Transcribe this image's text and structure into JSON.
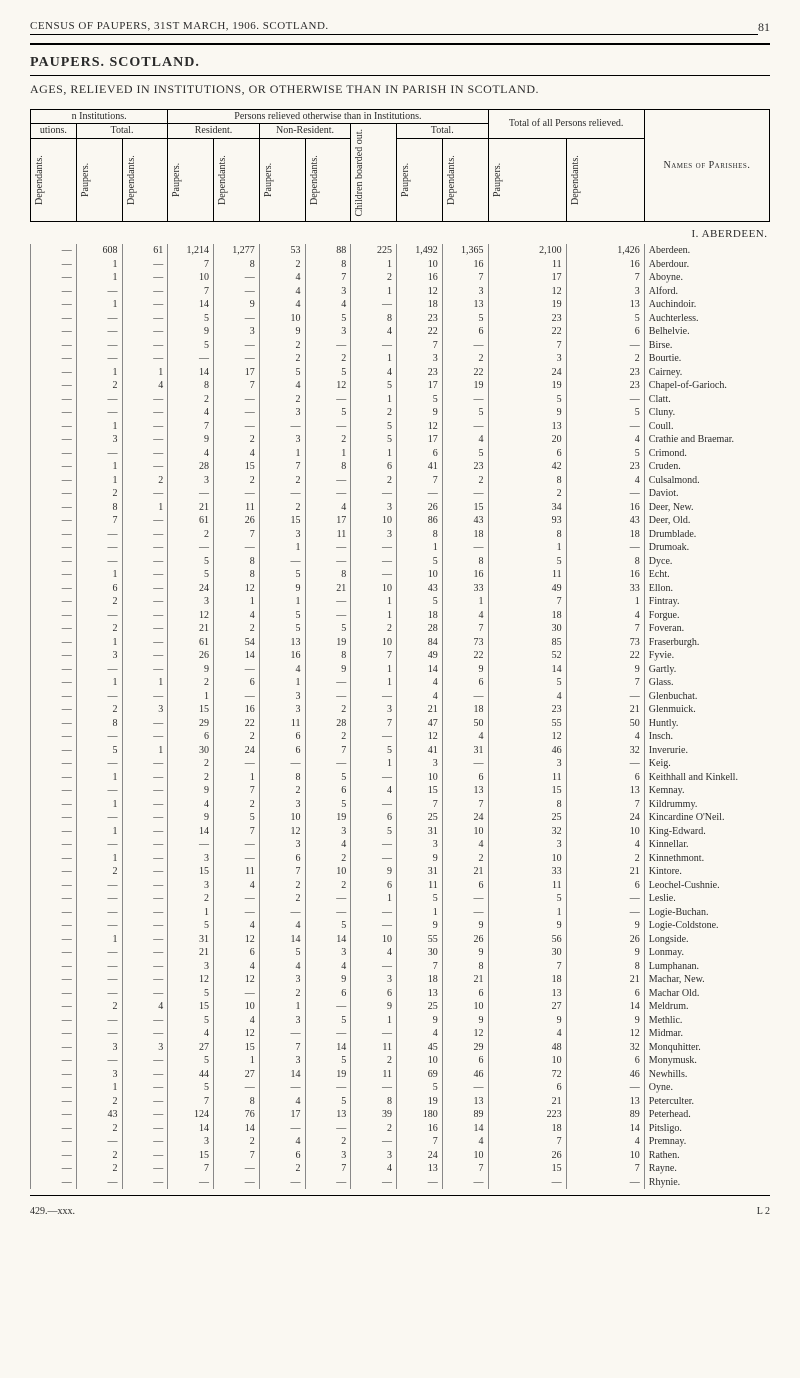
{
  "page": {
    "running_head": "CENSUS OF PAUPERS, 31ST MARCH, 1906.   SCOTLAND.",
    "page_number": "81",
    "section_title": "PAUPERS.  SCOTLAND.",
    "subtitle": "AGES, RELIEVED IN INSTITUTIONS, OR OTHERWISE THAN IN PARISH IN SCOTLAND.",
    "footer_left": "429.—xxx.",
    "footer_right": "L 2"
  },
  "table": {
    "group_headers": {
      "in_institutions": "n Institutions.",
      "persons_relieved": "Persons relieved otherwise than in Institutions.",
      "total_of_all": "Total of all Persons relieved.",
      "names": "Names of Parishes."
    },
    "sub_headers": {
      "utions": "utions.",
      "total": "Total.",
      "resident": "Resident.",
      "nonresident": "Non-Resident.",
      "children": "Children boarded out.",
      "total2": "Total."
    },
    "col_labels": {
      "dep": "Dependants.",
      "paup": "Paupers."
    },
    "county": "I.  ABERDEEN.",
    "rows": [
      {
        "c": [
          "—",
          "608",
          "61",
          "1,214",
          "1,277",
          "53",
          "88",
          "225",
          "1,492",
          "1,365",
          "2,100",
          "1,426"
        ],
        "p": "Aberdeen."
      },
      {
        "c": [
          "—",
          "1",
          "—",
          "7",
          "8",
          "2",
          "8",
          "1",
          "10",
          "16",
          "11",
          "16"
        ],
        "p": "Aberdour."
      },
      {
        "c": [
          "—",
          "1",
          "—",
          "10",
          "—",
          "4",
          "7",
          "2",
          "16",
          "7",
          "17",
          "7"
        ],
        "p": "Aboyne."
      },
      {
        "c": [
          "—",
          "—",
          "—",
          "7",
          "—",
          "4",
          "3",
          "1",
          "12",
          "3",
          "12",
          "3"
        ],
        "p": "Alford."
      },
      {
        "c": [
          "—",
          "1",
          "—",
          "14",
          "9",
          "4",
          "4",
          "—",
          "18",
          "13",
          "19",
          "13"
        ],
        "p": "Auchindoir."
      },
      {
        "c": [
          "—",
          "—",
          "—",
          "5",
          "—",
          "10",
          "5",
          "8",
          "23",
          "5",
          "23",
          "5"
        ],
        "p": "Auchterless."
      },
      {
        "c": [
          "—",
          "—",
          "—",
          "9",
          "3",
          "9",
          "3",
          "4",
          "22",
          "6",
          "22",
          "6"
        ],
        "p": "Belhelvie."
      },
      {
        "c": [
          "—",
          "—",
          "—",
          "5",
          "—",
          "2",
          "—",
          "—",
          "7",
          "—",
          "7",
          "—"
        ],
        "p": "Birse."
      },
      {
        "c": [
          "—",
          "—",
          "—",
          "—",
          "—",
          "2",
          "2",
          "1",
          "3",
          "2",
          "3",
          "2"
        ],
        "p": "Bourtie."
      },
      {
        "c": [
          "—",
          "1",
          "1",
          "14",
          "17",
          "5",
          "5",
          "4",
          "23",
          "22",
          "24",
          "23"
        ],
        "p": "Cairney."
      },
      {
        "c": [
          "—",
          "2",
          "4",
          "8",
          "7",
          "4",
          "12",
          "5",
          "17",
          "19",
          "19",
          "23"
        ],
        "p": "Chapel-of-Garioch."
      },
      {
        "c": [
          "—",
          "—",
          "—",
          "2",
          "—",
          "2",
          "—",
          "1",
          "5",
          "—",
          "5",
          "—"
        ],
        "p": "Clatt."
      },
      {
        "c": [
          "—",
          "—",
          "—",
          "4",
          "—",
          "3",
          "5",
          "2",
          "9",
          "5",
          "9",
          "5"
        ],
        "p": "Cluny."
      },
      {
        "c": [
          "—",
          "1",
          "—",
          "7",
          "—",
          "—",
          "—",
          "5",
          "12",
          "—",
          "13",
          "—"
        ],
        "p": "Coull."
      },
      {
        "c": [
          "—",
          "3",
          "—",
          "9",
          "2",
          "3",
          "2",
          "5",
          "17",
          "4",
          "20",
          "4"
        ],
        "p": "Crathie and Braemar."
      },
      {
        "c": [
          "—",
          "—",
          "—",
          "4",
          "4",
          "1",
          "1",
          "1",
          "6",
          "5",
          "6",
          "5"
        ],
        "p": "Crimond."
      },
      {
        "c": [
          "—",
          "1",
          "—",
          "28",
          "15",
          "7",
          "8",
          "6",
          "41",
          "23",
          "42",
          "23"
        ],
        "p": "Cruden."
      },
      {
        "c": [
          "—",
          "1",
          "2",
          "3",
          "2",
          "2",
          "—",
          "2",
          "7",
          "2",
          "8",
          "4"
        ],
        "p": "Culsalmond."
      },
      {
        "c": [
          "—",
          "2",
          "—",
          "—",
          "—",
          "—",
          "—",
          "—",
          "—",
          "—",
          "2",
          "—"
        ],
        "p": "Daviot."
      },
      {
        "c": [
          "—",
          "8",
          "1",
          "21",
          "11",
          "2",
          "4",
          "3",
          "26",
          "15",
          "34",
          "16"
        ],
        "p": "Deer, New."
      },
      {
        "c": [
          "—",
          "7",
          "—",
          "61",
          "26",
          "15",
          "17",
          "10",
          "86",
          "43",
          "93",
          "43"
        ],
        "p": "Deer, Old."
      },
      {
        "c": [
          "—",
          "—",
          "—",
          "2",
          "7",
          "3",
          "11",
          "3",
          "8",
          "18",
          "8",
          "18"
        ],
        "p": "Drumblade."
      },
      {
        "c": [
          "—",
          "—",
          "—",
          "—",
          "—",
          "1",
          "—",
          "—",
          "1",
          "—",
          "1",
          "—"
        ],
        "p": "Drumoak."
      },
      {
        "c": [
          "—",
          "—",
          "—",
          "5",
          "8",
          "—",
          "—",
          "—",
          "5",
          "8",
          "5",
          "8"
        ],
        "p": "Dyce."
      },
      {
        "c": [
          "—",
          "1",
          "—",
          "5",
          "8",
          "5",
          "8",
          "—",
          "10",
          "16",
          "11",
          "16"
        ],
        "p": "Echt."
      },
      {
        "c": [
          "—",
          "6",
          "—",
          "24",
          "12",
          "9",
          "21",
          "10",
          "43",
          "33",
          "49",
          "33"
        ],
        "p": "Ellon."
      },
      {
        "c": [
          "—",
          "2",
          "—",
          "3",
          "1",
          "1",
          "—",
          "1",
          "5",
          "1",
          "7",
          "1"
        ],
        "p": "Fintray."
      },
      {
        "c": [
          "—",
          "—",
          "—",
          "12",
          "4",
          "5",
          "—",
          "1",
          "18",
          "4",
          "18",
          "4"
        ],
        "p": "Forgue."
      },
      {
        "c": [
          "—",
          "2",
          "—",
          "21",
          "2",
          "5",
          "5",
          "2",
          "28",
          "7",
          "30",
          "7"
        ],
        "p": "Foveran."
      },
      {
        "c": [
          "—",
          "1",
          "—",
          "61",
          "54",
          "13",
          "19",
          "10",
          "84",
          "73",
          "85",
          "73"
        ],
        "p": "Fraserburgh."
      },
      {
        "c": [
          "—",
          "3",
          "—",
          "26",
          "14",
          "16",
          "8",
          "7",
          "49",
          "22",
          "52",
          "22"
        ],
        "p": "Fyvie."
      },
      {
        "c": [
          "—",
          "—",
          "—",
          "9",
          "—",
          "4",
          "9",
          "1",
          "14",
          "9",
          "14",
          "9"
        ],
        "p": "Gartly."
      },
      {
        "c": [
          "—",
          "1",
          "1",
          "2",
          "6",
          "1",
          "—",
          "1",
          "4",
          "6",
          "5",
          "7"
        ],
        "p": "Glass."
      },
      {
        "c": [
          "—",
          "—",
          "—",
          "1",
          "—",
          "3",
          "—",
          "—",
          "4",
          "—",
          "4",
          "—"
        ],
        "p": "Glenbuchat."
      },
      {
        "c": [
          "—",
          "2",
          "3",
          "15",
          "16",
          "3",
          "2",
          "3",
          "21",
          "18",
          "23",
          "21"
        ],
        "p": "Glenmuick."
      },
      {
        "c": [
          "—",
          "8",
          "—",
          "29",
          "22",
          "11",
          "28",
          "7",
          "47",
          "50",
          "55",
          "50"
        ],
        "p": "Huntly."
      },
      {
        "c": [
          "—",
          "—",
          "—",
          "6",
          "2",
          "6",
          "2",
          "—",
          "12",
          "4",
          "12",
          "4"
        ],
        "p": "Insch."
      },
      {
        "c": [
          "—",
          "5",
          "1",
          "30",
          "24",
          "6",
          "7",
          "5",
          "41",
          "31",
          "46",
          "32"
        ],
        "p": "Inverurie."
      },
      {
        "c": [
          "—",
          "—",
          "—",
          "2",
          "—",
          "—",
          "—",
          "1",
          "3",
          "—",
          "3",
          "—"
        ],
        "p": "Keig."
      },
      {
        "c": [
          "—",
          "1",
          "—",
          "2",
          "1",
          "8",
          "5",
          "—",
          "10",
          "6",
          "11",
          "6"
        ],
        "p": "Keithhall and Kinkell."
      },
      {
        "c": [
          "—",
          "—",
          "—",
          "9",
          "7",
          "2",
          "6",
          "4",
          "15",
          "13",
          "15",
          "13"
        ],
        "p": "Kemnay."
      },
      {
        "c": [
          "—",
          "1",
          "—",
          "4",
          "2",
          "3",
          "5",
          "—",
          "7",
          "7",
          "8",
          "7"
        ],
        "p": "Kildrummy."
      },
      {
        "c": [
          "—",
          "—",
          "—",
          "9",
          "5",
          "10",
          "19",
          "6",
          "25",
          "24",
          "25",
          "24"
        ],
        "p": "Kincardine O'Neil."
      },
      {
        "c": [
          "—",
          "1",
          "—",
          "14",
          "7",
          "12",
          "3",
          "5",
          "31",
          "10",
          "32",
          "10"
        ],
        "p": "King-Edward."
      },
      {
        "c": [
          "—",
          "—",
          "—",
          "—",
          "—",
          "3",
          "4",
          "—",
          "3",
          "4",
          "3",
          "4"
        ],
        "p": "Kinnellar."
      },
      {
        "c": [
          "—",
          "1",
          "—",
          "3",
          "—",
          "6",
          "2",
          "—",
          "9",
          "2",
          "10",
          "2"
        ],
        "p": "Kinnethmont."
      },
      {
        "c": [
          "—",
          "2",
          "—",
          "15",
          "11",
          "7",
          "10",
          "9",
          "31",
          "21",
          "33",
          "21"
        ],
        "p": "Kintore."
      },
      {
        "c": [
          "—",
          "—",
          "—",
          "3",
          "4",
          "2",
          "2",
          "6",
          "11",
          "6",
          "11",
          "6"
        ],
        "p": "Leochel-Cushnie."
      },
      {
        "c": [
          "—",
          "—",
          "—",
          "2",
          "—",
          "2",
          "—",
          "1",
          "5",
          "—",
          "5",
          "—"
        ],
        "p": "Leslie."
      },
      {
        "c": [
          "—",
          "—",
          "—",
          "1",
          "—",
          "—",
          "—",
          "—",
          "1",
          "—",
          "1",
          "—"
        ],
        "p": "Logie-Buchan."
      },
      {
        "c": [
          "—",
          "—",
          "—",
          "5",
          "4",
          "4",
          "5",
          "—",
          "9",
          "9",
          "9",
          "9"
        ],
        "p": "Logie-Coldstone."
      },
      {
        "c": [
          "—",
          "1",
          "—",
          "31",
          "12",
          "14",
          "14",
          "10",
          "55",
          "26",
          "56",
          "26"
        ],
        "p": "Longside."
      },
      {
        "c": [
          "—",
          "—",
          "—",
          "21",
          "6",
          "5",
          "3",
          "4",
          "30",
          "9",
          "30",
          "9"
        ],
        "p": "Lonmay."
      },
      {
        "c": [
          "—",
          "—",
          "—",
          "3",
          "4",
          "4",
          "4",
          "—",
          "7",
          "8",
          "7",
          "8"
        ],
        "p": "Lumphanan."
      },
      {
        "c": [
          "—",
          "—",
          "—",
          "12",
          "12",
          "3",
          "9",
          "3",
          "18",
          "21",
          "18",
          "21"
        ],
        "p": "Machar, New."
      },
      {
        "c": [
          "—",
          "—",
          "—",
          "5",
          "—",
          "2",
          "6",
          "6",
          "13",
          "6",
          "13",
          "6"
        ],
        "p": "Machar Old."
      },
      {
        "c": [
          "—",
          "2",
          "4",
          "15",
          "10",
          "1",
          "—",
          "9",
          "25",
          "10",
          "27",
          "14"
        ],
        "p": "Meldrum."
      },
      {
        "c": [
          "—",
          "—",
          "—",
          "5",
          "4",
          "3",
          "5",
          "1",
          "9",
          "9",
          "9",
          "9"
        ],
        "p": "Methlic."
      },
      {
        "c": [
          "—",
          "—",
          "—",
          "4",
          "12",
          "—",
          "—",
          "—",
          "4",
          "12",
          "4",
          "12"
        ],
        "p": "Midmar."
      },
      {
        "c": [
          "—",
          "3",
          "3",
          "27",
          "15",
          "7",
          "14",
          "11",
          "45",
          "29",
          "48",
          "32"
        ],
        "p": "Monquhitter."
      },
      {
        "c": [
          "—",
          "—",
          "—",
          "5",
          "1",
          "3",
          "5",
          "2",
          "10",
          "6",
          "10",
          "6"
        ],
        "p": "Monymusk."
      },
      {
        "c": [
          "—",
          "3",
          "—",
          "44",
          "27",
          "14",
          "19",
          "11",
          "69",
          "46",
          "72",
          "46"
        ],
        "p": "Newhills."
      },
      {
        "c": [
          "—",
          "1",
          "—",
          "5",
          "—",
          "—",
          "—",
          "—",
          "5",
          "—",
          "6",
          "—"
        ],
        "p": "Oyne."
      },
      {
        "c": [
          "—",
          "2",
          "—",
          "7",
          "8",
          "4",
          "5",
          "8",
          "19",
          "13",
          "21",
          "13"
        ],
        "p": "Peterculter."
      },
      {
        "c": [
          "—",
          "43",
          "—",
          "124",
          "76",
          "17",
          "13",
          "39",
          "180",
          "89",
          "223",
          "89"
        ],
        "p": "Peterhead."
      },
      {
        "c": [
          "—",
          "2",
          "—",
          "14",
          "14",
          "—",
          "—",
          "2",
          "16",
          "14",
          "18",
          "14"
        ],
        "p": "Pitsligo."
      },
      {
        "c": [
          "—",
          "—",
          "—",
          "3",
          "2",
          "4",
          "2",
          "—",
          "7",
          "4",
          "7",
          "4"
        ],
        "p": "Premnay."
      },
      {
        "c": [
          "—",
          "2",
          "—",
          "15",
          "7",
          "6",
          "3",
          "3",
          "24",
          "10",
          "26",
          "10"
        ],
        "p": "Rathen."
      },
      {
        "c": [
          "—",
          "2",
          "—",
          "7",
          "—",
          "2",
          "7",
          "4",
          "13",
          "7",
          "15",
          "7"
        ],
        "p": "Rayne."
      },
      {
        "c": [
          "—",
          "—",
          "—",
          "—",
          "—",
          "—",
          "—",
          "—",
          "—",
          "—",
          "—",
          "—"
        ],
        "p": "Rhynie."
      }
    ]
  }
}
